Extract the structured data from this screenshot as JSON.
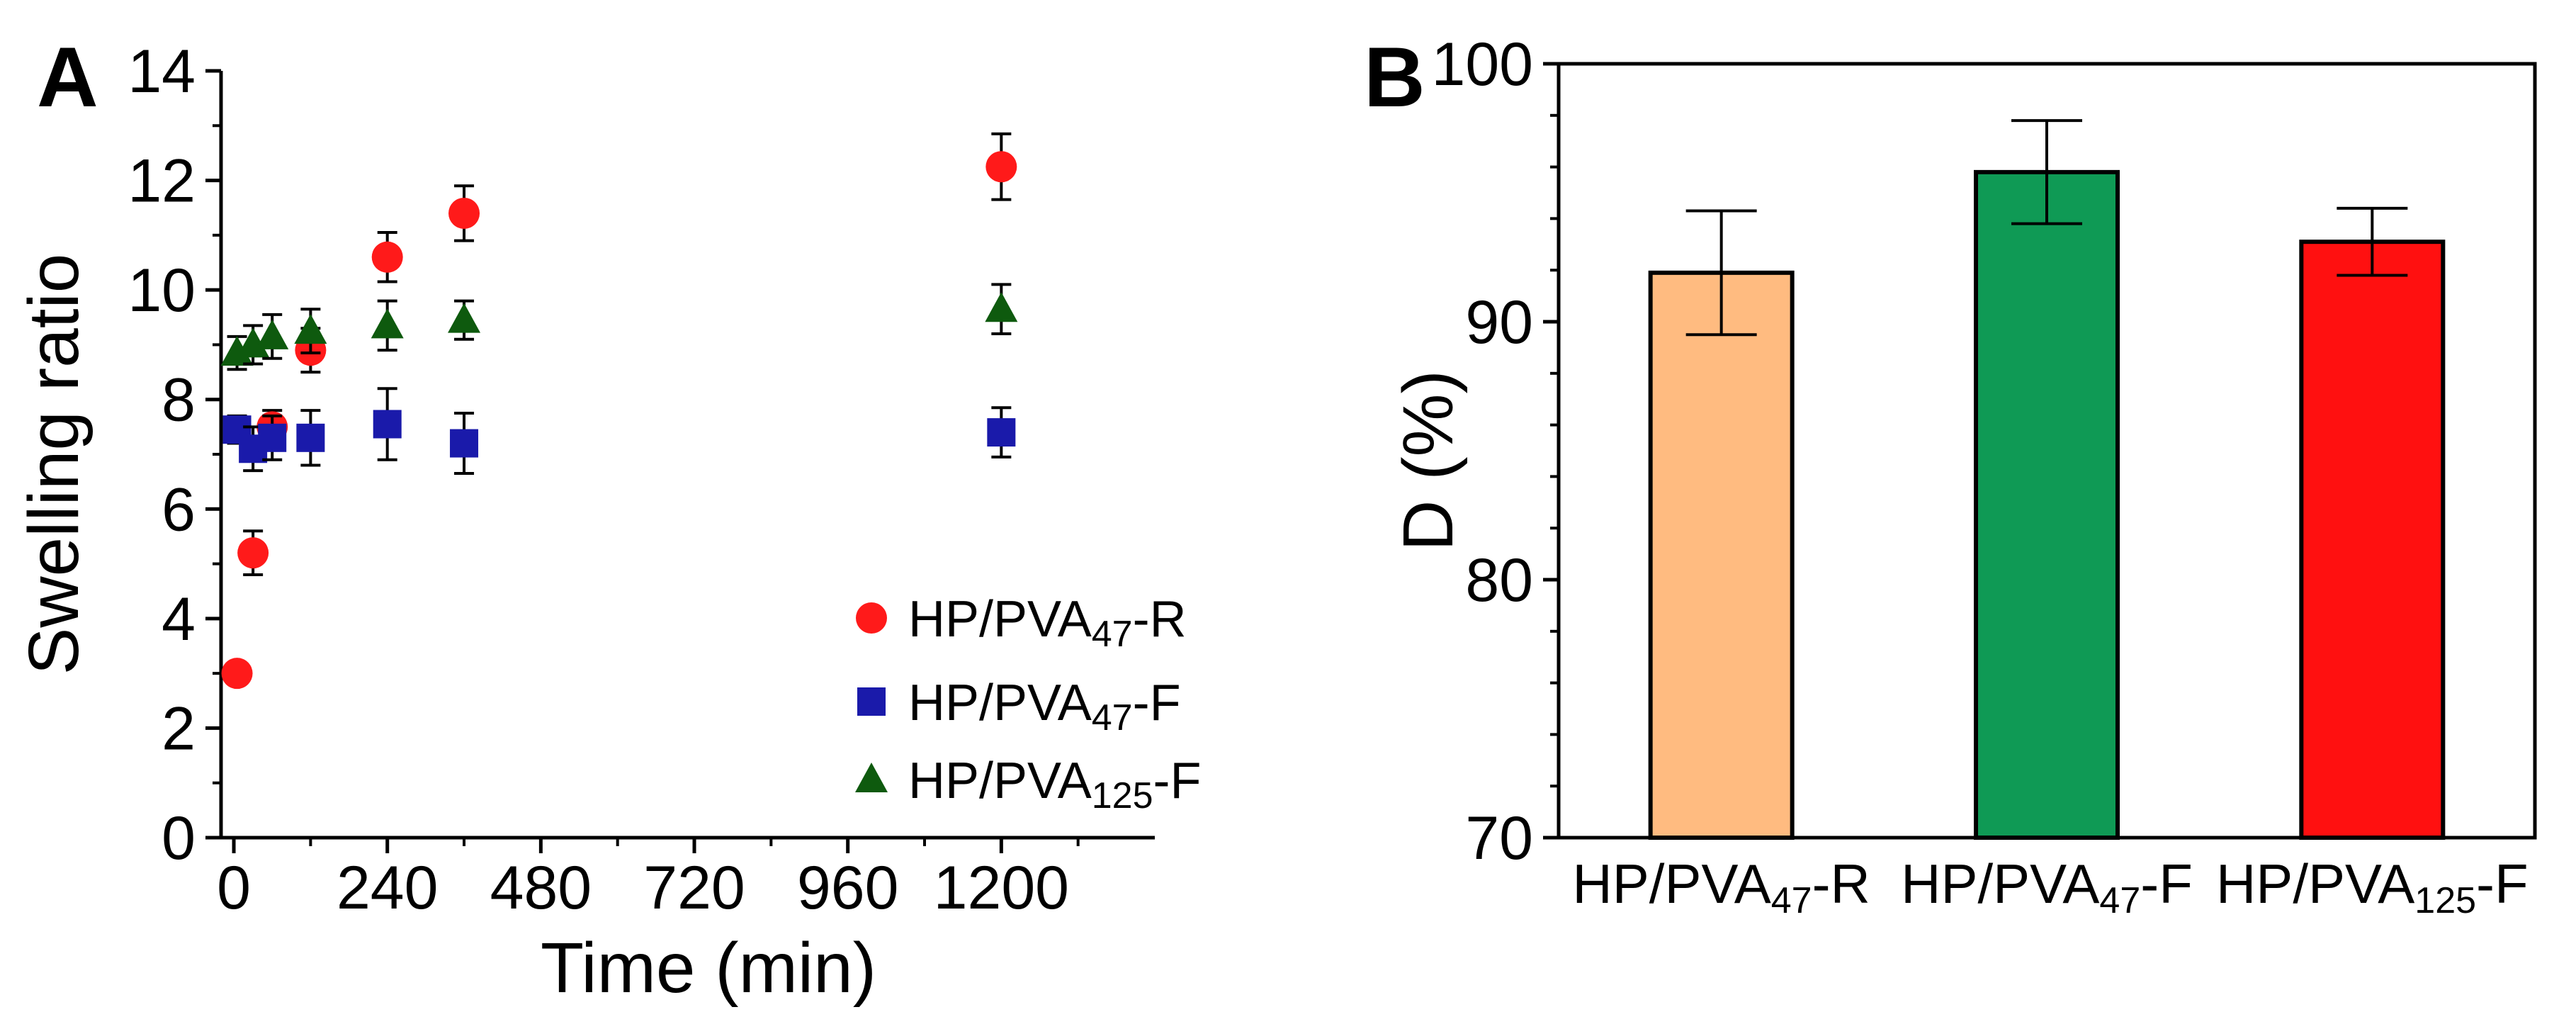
{
  "chart_data": [
    {
      "panel": "A",
      "type": "scatter",
      "xlabel": "Time (min)",
      "ylabel": "Swelling ratio",
      "xlim": [
        -20,
        1440
      ],
      "ylim": [
        0,
        14
      ],
      "xticks": [
        0,
        240,
        480,
        720,
        960,
        1200
      ],
      "yticks": [
        0,
        2,
        4,
        6,
        8,
        10,
        12,
        14
      ],
      "legend_position": "bottom-right",
      "series": [
        {
          "name": "HP/PVA47-R",
          "label_main": "HP/PVA",
          "label_sub": "47",
          "label_suffix": "-R",
          "marker": "circle",
          "color": "#ff1a1a",
          "x": [
            5,
            30,
            60,
            120,
            240,
            360,
            1200
          ],
          "y": [
            3.0,
            5.2,
            7.5,
            8.9,
            10.6,
            11.4,
            12.25
          ],
          "err": [
            0.0,
            0.4,
            0.3,
            0.4,
            0.45,
            0.5,
            0.6
          ]
        },
        {
          "name": "HP/PVA47-F",
          "label_main": "HP/PVA",
          "label_sub": "47",
          "label_suffix": "-F",
          "marker": "square",
          "color": "#1a1aaa",
          "x": [
            5,
            30,
            60,
            120,
            240,
            360,
            1200
          ],
          "y": [
            7.45,
            7.1,
            7.3,
            7.3,
            7.55,
            7.2,
            7.4
          ],
          "err": [
            0.25,
            0.4,
            0.4,
            0.5,
            0.65,
            0.55,
            0.45
          ]
        },
        {
          "name": "HP/PVA125-F",
          "label_main": "HP/PVA",
          "label_sub": "125",
          "label_suffix": "-F",
          "marker": "triangle",
          "color": "#0e5a0e",
          "x": [
            5,
            30,
            60,
            120,
            240,
            360,
            1200
          ],
          "y": [
            8.85,
            9.0,
            9.15,
            9.25,
            9.35,
            9.45,
            9.65
          ],
          "err": [
            0.3,
            0.35,
            0.4,
            0.4,
            0.45,
            0.35,
            0.45
          ]
        }
      ]
    },
    {
      "panel": "B",
      "type": "bar",
      "ylabel": "D (%)",
      "xlabel": "",
      "ylim": [
        70,
        100
      ],
      "yticks": [
        70,
        80,
        90,
        100
      ],
      "categories": [
        "HP/PVA47-R",
        "HP/PVA47-F",
        "HP/PVA125-F"
      ],
      "category_parts": [
        {
          "main": "HP/PVA",
          "sub": "47",
          "suffix": "-R"
        },
        {
          "main": "HP/PVA",
          "sub": "47",
          "suffix": "-F"
        },
        {
          "main": "HP/PVA",
          "sub": "125",
          "suffix": "-F"
        }
      ],
      "values": [
        91.9,
        95.8,
        93.1
      ],
      "err": [
        2.4,
        2.0,
        1.3
      ],
      "colors": [
        "#ffbb80",
        "#0f9a55",
        "#ff1010"
      ]
    }
  ]
}
